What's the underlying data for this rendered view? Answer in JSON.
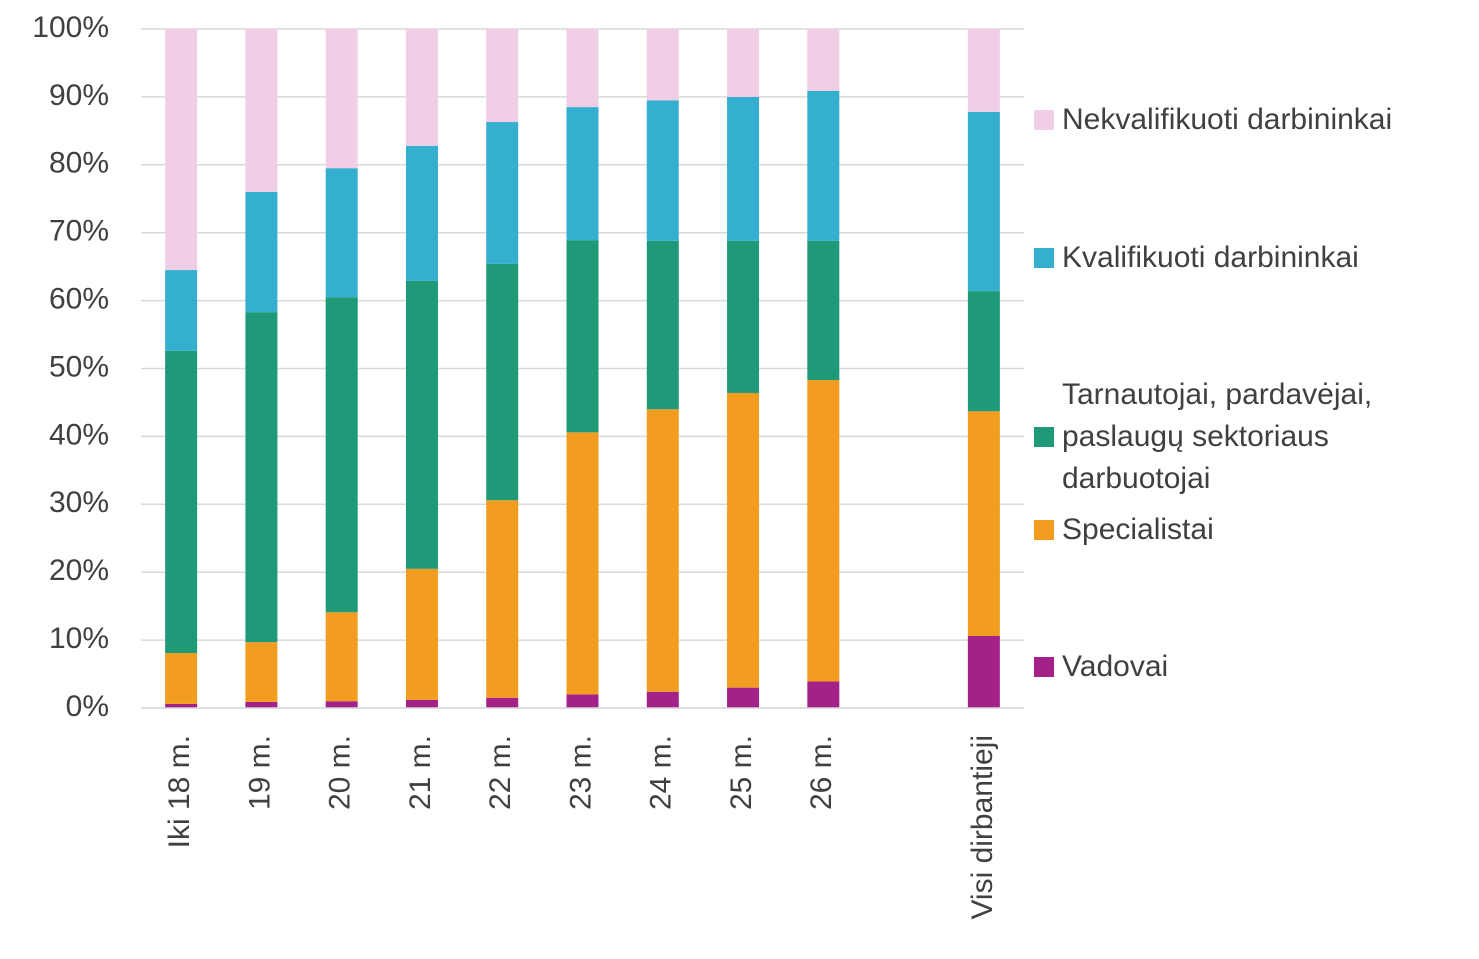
{
  "chart_data": {
    "type": "stacked_bar",
    "categories": [
      "Iki 18 m.",
      "19 m.",
      "20 m.",
      "21 m.",
      "22 m.",
      "23 m.",
      "24 m.",
      "25 m.",
      "26 m.",
      null,
      "Visi dirbantieji"
    ],
    "series": [
      {
        "name": "Vadovai",
        "color": "#a4218a",
        "values": [
          0.6,
          0.9,
          1.0,
          1.2,
          1.5,
          2.0,
          2.4,
          3.0,
          3.9,
          null,
          10.6
        ]
      },
      {
        "name": "Specialistai",
        "color": "#f29d1f",
        "values": [
          7.5,
          8.8,
          13.1,
          19.3,
          29.1,
          38.6,
          41.6,
          43.4,
          44.4,
          null,
          33.1
        ]
      },
      {
        "name": "Tarnautojai, pardavėjai, paslaugų sektoriaus darbuotojai",
        "color": "#1e9a78",
        "values": [
          44.5,
          48.6,
          46.4,
          42.4,
          34.8,
          28.3,
          24.8,
          22.4,
          20.5,
          null,
          17.7
        ]
      },
      {
        "name": "Kvalifikuoti darbininkai",
        "color": "#35afd0",
        "values": [
          11.9,
          17.7,
          19.0,
          19.9,
          20.9,
          19.6,
          20.7,
          21.2,
          22.1,
          null,
          26.4
        ]
      },
      {
        "name": "Nekvalifikuoti darbininkai",
        "color": "#f0cfe6",
        "values": [
          35.5,
          24.0,
          20.5,
          17.2,
          13.7,
          11.5,
          10.5,
          10.0,
          9.1,
          null,
          12.2
        ]
      }
    ],
    "ylim": [
      0,
      100
    ],
    "yticks": [
      {
        "value": 0,
        "label": "0%"
      },
      {
        "value": 10,
        "label": "10%"
      },
      {
        "value": 20,
        "label": "20%"
      },
      {
        "value": 30,
        "label": "30%"
      },
      {
        "value": 40,
        "label": "40%"
      },
      {
        "value": 50,
        "label": "50%"
      },
      {
        "value": 60,
        "label": "60%"
      },
      {
        "value": 70,
        "label": "70%"
      },
      {
        "value": 80,
        "label": "80%"
      },
      {
        "value": 90,
        "label": "90%"
      },
      {
        "value": 100,
        "label": "100%"
      }
    ],
    "grid": true,
    "legend": "right"
  }
}
